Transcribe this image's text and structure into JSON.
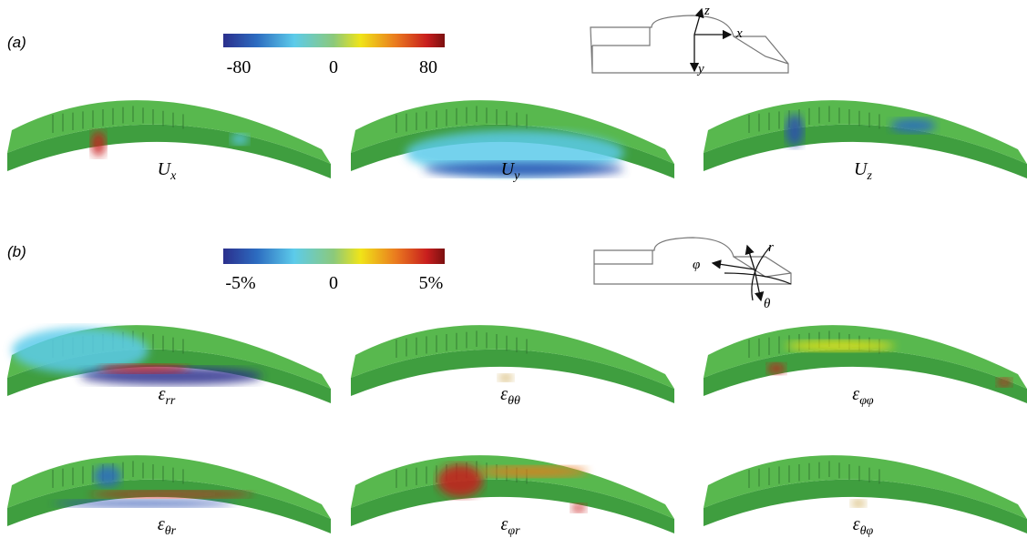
{
  "panel_a": {
    "label": "(a)",
    "colorbar": {
      "min": "-80",
      "mid": "0",
      "max": "80"
    },
    "axes": {
      "z": "z",
      "x": "x",
      "y": "y"
    },
    "plots": [
      {
        "symbol": "U",
        "subscript": "x"
      },
      {
        "symbol": "U",
        "subscript": "y"
      },
      {
        "symbol": "U",
        "subscript": "z"
      }
    ]
  },
  "panel_b": {
    "label": "(b)",
    "colorbar": {
      "min": "-5%",
      "mid": "0",
      "max": "5%"
    },
    "axes": {
      "r": "r",
      "phi": "φ",
      "theta": "θ"
    },
    "plots": [
      {
        "symbol": "ε",
        "subscript": "rr"
      },
      {
        "symbol": "ε",
        "subscript": "θθ"
      },
      {
        "symbol": "ε",
        "subscript": "φφ"
      },
      {
        "symbol": "ε",
        "subscript": "θr"
      },
      {
        "symbol": "ε",
        "subscript": "φr"
      },
      {
        "symbol": "ε",
        "subscript": "θφ"
      }
    ]
  }
}
